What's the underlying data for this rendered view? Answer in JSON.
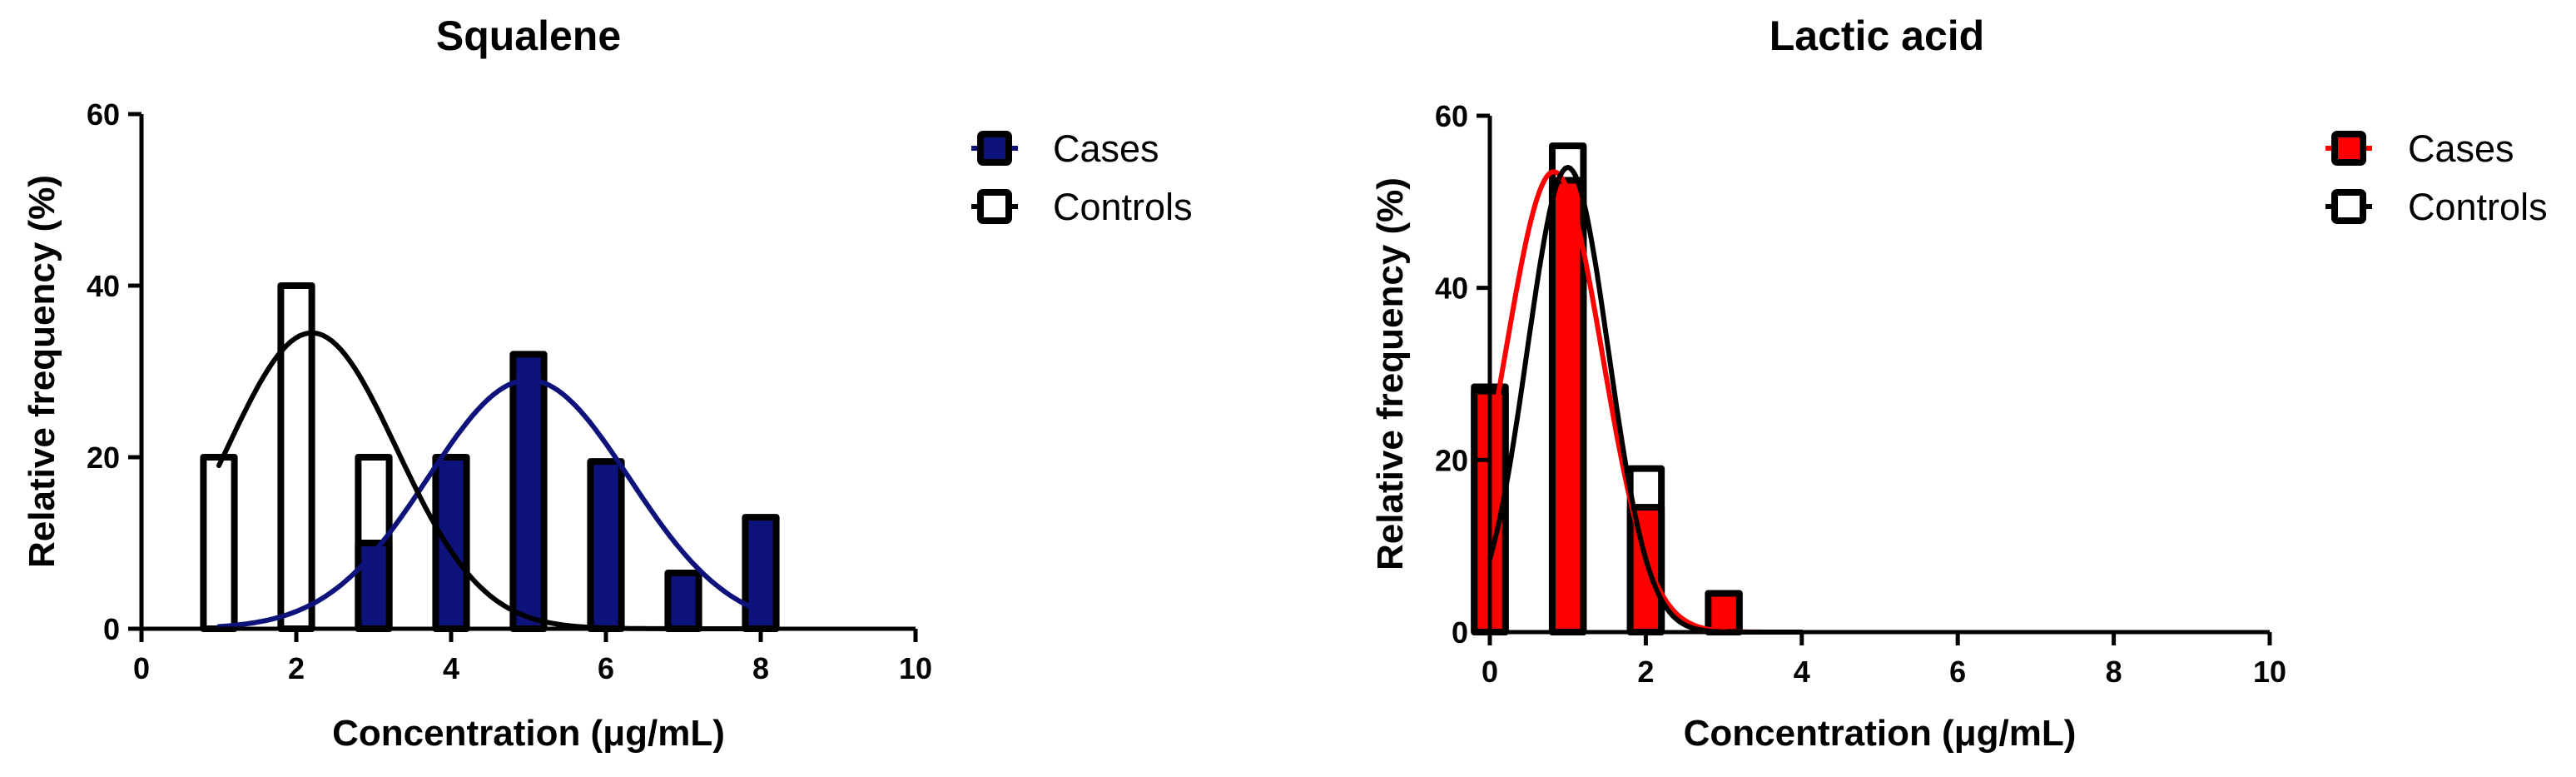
{
  "chart_data": [
    {
      "type": "bar",
      "title": "Squalene",
      "xlabel": "Concentration (μg/mL)",
      "ylabel": "Relative frequency (%)",
      "xlim": [
        0,
        10
      ],
      "ylim": [
        0,
        60
      ],
      "xticks": [
        "0",
        "2",
        "4",
        "6",
        "8",
        "10"
      ],
      "yticks": [
        "0",
        "20",
        "40",
        "60"
      ],
      "grid": false,
      "legend_position": "top-right",
      "series": [
        {
          "name": "Cases",
          "color": "#0d137a",
          "curve_color": "#0d137a",
          "x": [
            3,
            4,
            5,
            6,
            7,
            8
          ],
          "values": [
            10,
            20,
            32,
            19.5,
            6.5,
            13
          ],
          "fit_curve": {
            "type": "gaussian",
            "amplitude": 29,
            "mean": 5.0,
            "sd": 1.3,
            "x_range": [
              1,
              8
            ]
          }
        },
        {
          "name": "Controls",
          "color": "#ffffff",
          "curve_color": "#000000",
          "x": [
            1,
            2,
            3
          ],
          "values": [
            20,
            40,
            20
          ],
          "fit_curve": {
            "type": "gaussian",
            "amplitude": 34.5,
            "mean": 2.2,
            "sd": 1.1,
            "x_range": [
              1,
              8
            ]
          }
        }
      ]
    },
    {
      "type": "bar",
      "title": "Lactic acid",
      "xlabel": "Concentration (μg/mL)",
      "ylabel": "Relative frequency (%)",
      "xlim": [
        0,
        10
      ],
      "ylim": [
        0,
        60
      ],
      "xticks": [
        "0",
        "2",
        "4",
        "6",
        "8",
        "10"
      ],
      "yticks": [
        "0",
        "20",
        "40",
        "60"
      ],
      "grid": false,
      "legend_position": "top-right",
      "series": [
        {
          "name": "Cases",
          "color": "#ff0000",
          "curve_color": "#ff0000",
          "x": [
            0,
            1,
            2,
            3
          ],
          "values": [
            28,
            52.5,
            14.5,
            4.5
          ],
          "fit_curve": {
            "type": "gaussian",
            "amplitude": 53.5,
            "mean": 0.82,
            "sd": 0.62,
            "x_range": [
              0,
              4
            ]
          }
        },
        {
          "name": "Controls",
          "color": "#ffffff",
          "curve_color": "#000000",
          "x": [
            0,
            1,
            2
          ],
          "values": [
            28.5,
            56.5,
            19
          ],
          "fit_curve": {
            "type": "gaussian",
            "amplitude": 54,
            "mean": 1.0,
            "sd": 0.52,
            "x_range": [
              0,
              4
            ]
          }
        }
      ]
    }
  ]
}
